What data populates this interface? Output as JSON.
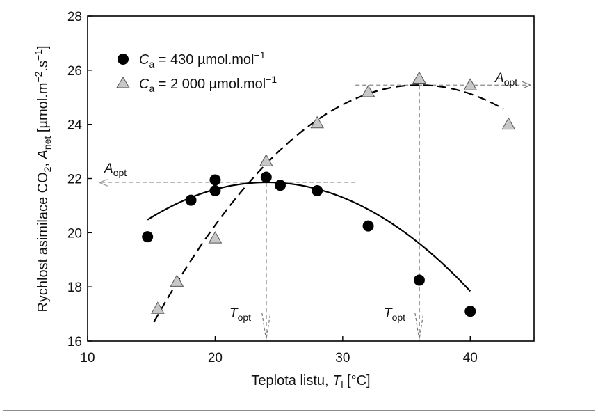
{
  "chart_data": {
    "type": "scatter",
    "xlabel": {
      "main": "Teplota listu, ",
      "var": "T",
      "sub": "l",
      "unit": " [°C]"
    },
    "ylabel": {
      "main": "Rychlost asimilace CO",
      "co2sub": "2",
      "sep": ", ",
      "var": "A",
      "sub": "net",
      "unit_pre": " [µmol.m",
      "exp1": "−2",
      "unit_mid": ".s",
      "exp2": "−1",
      "unit_post": "]"
    },
    "xlim": [
      10,
      45
    ],
    "ylim": [
      16,
      28
    ],
    "x_ticks": [
      "10",
      "20",
      "30",
      "40"
    ],
    "y_ticks": [
      "16",
      "18",
      "20",
      "22",
      "24",
      "26",
      "28"
    ],
    "grid": false,
    "legend_position": "top-left",
    "series": [
      {
        "name": "C_a = 430 µmol.mol−1",
        "legend": {
          "var": "C",
          "sub": "a",
          "text": " = 430 µmol.mol",
          "sup": "−1"
        },
        "marker": "circle",
        "color": "#000000",
        "points": [
          [
            14.7,
            19.85
          ],
          [
            18.1,
            21.2
          ],
          [
            20.0,
            21.55
          ],
          [
            20.0,
            21.95
          ],
          [
            24.0,
            22.05
          ],
          [
            25.1,
            21.75
          ],
          [
            28.0,
            21.55
          ],
          [
            32.0,
            20.25
          ],
          [
            36.0,
            18.25
          ],
          [
            40.0,
            17.1
          ]
        ],
        "fit_curve": {
          "style": "solid",
          "x_range": [
            14.7,
            40.0
          ],
          "coeffs": [
            -0.0158,
            0.76,
            12.72
          ]
        }
      },
      {
        "name": "C_a = 2 000 µmol.mol−1",
        "legend": {
          "var": "C",
          "sub": "a",
          "text": " = 2 000 µmol.mol",
          "sup": "−1"
        },
        "marker": "triangle",
        "color": "#c8c8c8",
        "points": [
          [
            15.5,
            17.2
          ],
          [
            17.0,
            18.2
          ],
          [
            20.0,
            19.8
          ],
          [
            24.0,
            22.65
          ],
          [
            28.0,
            24.05
          ],
          [
            32.0,
            25.2
          ],
          [
            36.0,
            25.7
          ],
          [
            40.0,
            25.45
          ],
          [
            43.0,
            24.0
          ]
        ],
        "fit_curve": {
          "style": "dashed",
          "x_range": [
            15.2,
            42.6
          ],
          "coeffs": [
            -0.02025,
            1.4575,
            -0.774
          ]
        }
      }
    ],
    "annotations": [
      {
        "type": "h_arrow",
        "label_var": "A",
        "label_sub": "opt",
        "y": 21.85,
        "from_x": 31.0,
        "to_x": 10.0,
        "color": "#bbbbbb"
      },
      {
        "type": "v_arrow",
        "label_var": "T",
        "label_sub": "opt",
        "x": 24.0,
        "from_y": 21.85,
        "to_y": 16.0
      },
      {
        "type": "h_arrow",
        "label_var": "A",
        "label_sub": "opt",
        "y": 25.45,
        "from_x": 31.0,
        "to_x": 45.0,
        "color": "#888888"
      },
      {
        "type": "v_arrow",
        "label_var": "T",
        "label_sub": "opt",
        "x": 36.0,
        "from_y": 25.45,
        "to_y": 16.0
      }
    ]
  }
}
